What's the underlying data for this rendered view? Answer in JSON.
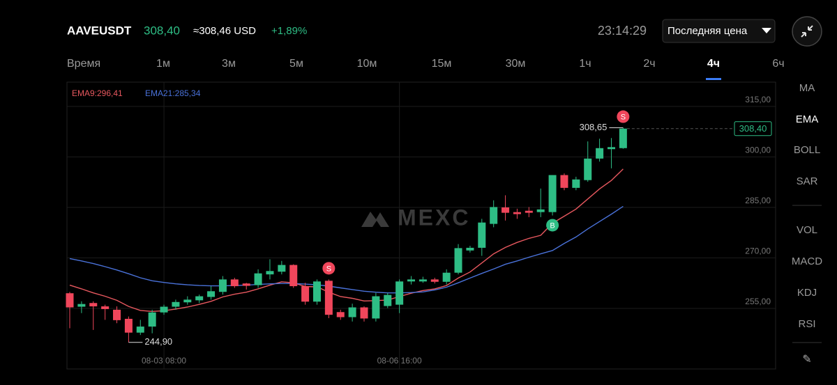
{
  "header": {
    "symbol": "AAVEUSDT",
    "price": "308,40",
    "index_price": "≈308,46 USD",
    "change": "+1,89%",
    "time": "23:14:29",
    "price_type": "Последняя цена"
  },
  "timeframes": {
    "items": [
      "Время",
      "1м",
      "3м",
      "5м",
      "10м",
      "15м",
      "30м",
      "1ч",
      "2ч",
      "4ч",
      "6ч"
    ],
    "active_index": 9
  },
  "indicators": {
    "items": [
      "MA",
      "EMA",
      "BOLL",
      "SAR",
      "VOL",
      "MACD",
      "KDJ",
      "RSI"
    ],
    "active_index": 1
  },
  "chart_data": {
    "type": "candlestick",
    "categories": [
      null,
      null,
      null,
      null,
      null,
      null,
      null,
      null,
      "08-03 08:00",
      null,
      null,
      null,
      null,
      null,
      null,
      null,
      null,
      null,
      null,
      null,
      null,
      null,
      null,
      null,
      null,
      null,
      null,
      null,
      "08-06 16:00",
      null,
      null,
      null,
      null,
      null,
      null,
      null,
      null,
      null,
      null,
      null,
      null,
      null,
      null,
      null,
      null,
      null,
      null,
      null
    ],
    "open": [
      259.5,
      255.5,
      256.6,
      255.6,
      254.6,
      251.9,
      247.8,
      249.6,
      253.8,
      255.5,
      256.8,
      257.4,
      258.4,
      259.9,
      263.6,
      262.4,
      261.9,
      265.1,
      265.9,
      267.9,
      261.6,
      257.0,
      263.2,
      253.9,
      252.4,
      255.3,
      252.0,
      255.7,
      256.1,
      263.0,
      263.0,
      263.6,
      262.9,
      265.6,
      272.2,
      273.0,
      280.1,
      285.0,
      283.6,
      284.0,
      283.6,
      283.6,
      294.6,
      290.8,
      293.1,
      299.5,
      302.3,
      302.6
    ],
    "high": [
      259.9,
      257.1,
      257.1,
      256.1,
      255.6,
      252.6,
      251.6,
      254.6,
      256.1,
      257.6,
      258.6,
      259.1,
      261.6,
      264.6,
      264.1,
      262.6,
      266.6,
      269.6,
      269.1,
      268.1,
      262.6,
      263.6,
      263.6,
      254.6,
      256.4,
      255.6,
      259.6,
      259.6,
      263.6,
      264.6,
      264.4,
      264.1,
      266.6,
      274.1,
      273.6,
      281.6,
      287.1,
      288.6,
      284.6,
      285.1,
      290.6,
      294.6,
      295.1,
      294.1,
      304.6,
      305.4,
      305.6,
      308.65
    ],
    "low": [
      249.1,
      253.6,
      248.6,
      251.6,
      250.6,
      244.9,
      247.1,
      247.6,
      253.1,
      254.6,
      256.1,
      256.6,
      257.6,
      259.1,
      261.1,
      260.6,
      261.1,
      263.6,
      265.1,
      261.1,
      256.1,
      256.1,
      252.1,
      251.6,
      251.1,
      251.1,
      251.1,
      255.1,
      253.6,
      262.1,
      262.6,
      262.4,
      262.1,
      265.1,
      271.6,
      270.6,
      279.1,
      281.1,
      281.6,
      282.1,
      282.1,
      282.6,
      290.1,
      290.1,
      292.6,
      298.6,
      296.6,
      302.4
    ],
    "close": [
      255.3,
      256.3,
      255.6,
      254.8,
      251.5,
      247.8,
      249.6,
      253.8,
      255.5,
      256.9,
      257.6,
      258.6,
      260.1,
      263.6,
      261.6,
      261.7,
      265.4,
      266.1,
      267.9,
      261.6,
      257.0,
      263.0,
      253.1,
      252.4,
      255.3,
      252.0,
      258.6,
      259.0,
      263.0,
      263.6,
      263.6,
      262.9,
      265.6,
      272.9,
      273.0,
      280.5,
      285.1,
      283.4,
      283.0,
      283.4,
      284.4,
      294.6,
      290.8,
      293.3,
      299.5,
      302.6,
      302.9,
      308.4
    ],
    "up_color": "#2ebd85",
    "down_color": "#f0465b",
    "series": [
      {
        "name": "EMA9:296,41",
        "color": "#e8585f",
        "values": [
          261.9,
          260.8,
          259.6,
          258.6,
          257.4,
          255.6,
          254.4,
          254.1,
          254.3,
          254.8,
          255.4,
          256.2,
          257.1,
          258.4,
          259.2,
          259.8,
          260.8,
          261.9,
          262.9,
          262.6,
          261.5,
          261.4,
          259.8,
          258.5,
          258.0,
          257.2,
          257.3,
          257.5,
          258.5,
          259.5,
          260.3,
          260.8,
          261.8,
          264.0,
          265.8,
          268.5,
          271.2,
          273.1,
          274.6,
          275.8,
          276.7,
          280.3,
          282.4,
          284.5,
          287.5,
          290.5,
          293.0,
          296.4
        ]
      },
      {
        "name": "EMA21:285,34",
        "color": "#4a72da",
        "values": [
          269.8,
          269.1,
          268.3,
          267.4,
          266.4,
          265.3,
          264.1,
          263.2,
          262.7,
          262.3,
          262.0,
          261.8,
          261.7,
          261.7,
          261.8,
          261.9,
          262.1,
          262.3,
          262.4,
          262.4,
          262.2,
          262.0,
          261.6,
          261.1,
          260.6,
          260.1,
          259.8,
          259.6,
          259.6,
          259.7,
          259.9,
          260.5,
          261.3,
          262.6,
          264.0,
          265.4,
          266.7,
          268.1,
          269.1,
          270.2,
          271.2,
          272.2,
          274.3,
          276.2,
          278.6,
          280.8,
          283.0,
          285.3
        ]
      }
    ],
    "signals": [
      null,
      null,
      null,
      null,
      null,
      null,
      null,
      null,
      null,
      null,
      null,
      null,
      null,
      null,
      null,
      null,
      null,
      null,
      null,
      null,
      null,
      null,
      {
        "label": "S",
        "kind": "sell"
      },
      null,
      null,
      null,
      null,
      null,
      null,
      null,
      null,
      null,
      null,
      null,
      null,
      null,
      null,
      null,
      null,
      null,
      null,
      {
        "label": "B",
        "kind": "buy"
      },
      null,
      null,
      null,
      null,
      null,
      {
        "label": "S",
        "kind": "sell"
      }
    ],
    "high_label": {
      "value": 308.65,
      "label": "308,65"
    },
    "low_label": {
      "value": 244.9,
      "label": "244,90"
    },
    "last_price": {
      "value": 308.4,
      "label": "308,40"
    },
    "watermark": "MEXC",
    "ylim": [
      237.0,
      322.2
    ],
    "yticks": [
      {
        "value": 315,
        "label": "315,00"
      },
      {
        "value": 300,
        "label": "300,00"
      },
      {
        "value": 285,
        "label": "285,00"
      },
      {
        "value": 270,
        "label": "270,00"
      },
      {
        "value": 255,
        "label": "255,00"
      }
    ],
    "grid": true
  }
}
